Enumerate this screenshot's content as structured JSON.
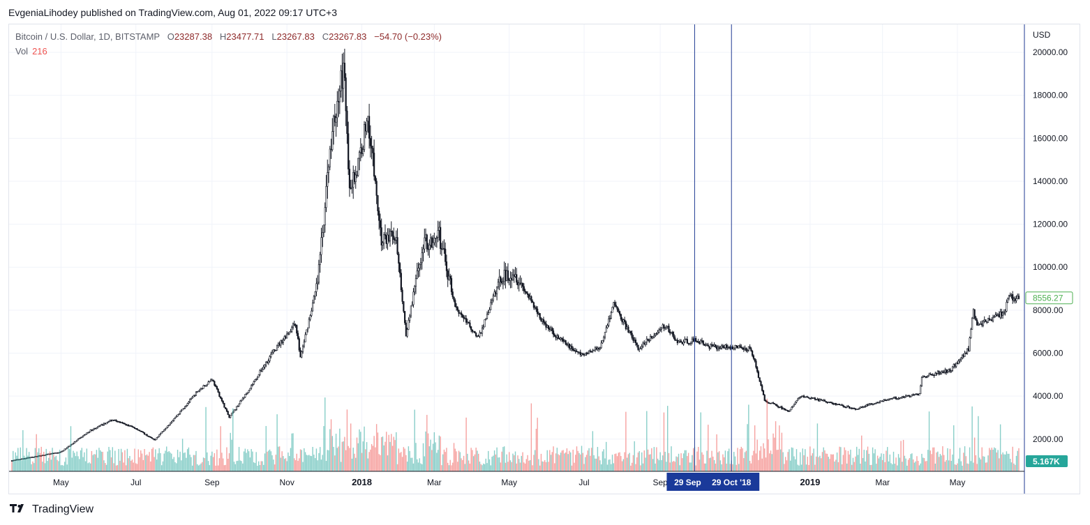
{
  "header": {
    "published_by": "EvgeniaLihodey published on TradingView.com, Aug 01, 2022 09:17 UTC+3"
  },
  "legend": {
    "symbol": "Bitcoin / U.S. Dollar, 1D, BITSTAMP",
    "open_label": "O",
    "open": "23287.38",
    "high_label": "H",
    "high": "23477.71",
    "low_label": "L",
    "low": "23267.83",
    "close_label": "C",
    "close": "23267.83",
    "change": "−54.70 (−0.23%)",
    "vol_label": "Vol",
    "vol_value": "216"
  },
  "footer": {
    "brand": "TradingView",
    "logo_icon": "tradingview-logo-icon"
  },
  "colors": {
    "candle": "#131722",
    "vol_up": "#26a69a",
    "vol_down": "#ef5350",
    "marker_line": "#1f3a93",
    "marker_label_bg": "#1a3a9a",
    "price_tag": "#4caf50",
    "vol_tag": "#26a69a",
    "grid": "#f0f3fa"
  },
  "chart_data": {
    "type": "candlestick",
    "currency_label": "USD",
    "y_ticks": [
      "2000.00",
      "4000.00",
      "6000.00",
      "8000.00",
      "10000.00",
      "12000.00",
      "14000.00",
      "16000.00",
      "18000.00",
      "20000.00"
    ],
    "y_tick_values": [
      2000,
      4000,
      6000,
      8000,
      10000,
      12000,
      14000,
      16000,
      18000,
      20000
    ],
    "ylim": [
      500,
      21300
    ],
    "x_labels": [
      {
        "label": "May",
        "date": "2017-05-01"
      },
      {
        "label": "Jul",
        "date": "2017-07-01"
      },
      {
        "label": "Sep",
        "date": "2017-09-01"
      },
      {
        "label": "Nov",
        "date": "2017-11-01"
      },
      {
        "label": "2018",
        "date": "2018-01-01",
        "bold": true
      },
      {
        "label": "Mar",
        "date": "2018-03-01"
      },
      {
        "label": "May",
        "date": "2018-05-01"
      },
      {
        "label": "Jul",
        "date": "2018-07-01"
      },
      {
        "label": "Sep",
        "date": "2018-09-01"
      },
      {
        "label": "2019",
        "date": "2019-01-01",
        "bold": true
      },
      {
        "label": "Mar",
        "date": "2019-03-01"
      },
      {
        "label": "May",
        "date": "2019-05-01"
      }
    ],
    "x_range": [
      "2017-03-22",
      "2019-06-20"
    ],
    "price_anchors": [
      [
        "2017-03-22",
        1000
      ],
      [
        "2017-04-10",
        1190
      ],
      [
        "2017-05-01",
        1400
      ],
      [
        "2017-05-25",
        2400
      ],
      [
        "2017-06-12",
        2900
      ],
      [
        "2017-07-01",
        2500
      ],
      [
        "2017-07-16",
        1950
      ],
      [
        "2017-08-05",
        3200
      ],
      [
        "2017-08-20",
        4200
      ],
      [
        "2017-09-01",
        4800
      ],
      [
        "2017-09-15",
        3000
      ],
      [
        "2017-10-01",
        4300
      ],
      [
        "2017-10-20",
        6000
      ],
      [
        "2017-11-08",
        7400
      ],
      [
        "2017-11-12",
        5800
      ],
      [
        "2017-11-26",
        9300
      ],
      [
        "2017-12-07",
        16000
      ],
      [
        "2017-12-17",
        19300
      ],
      [
        "2017-12-22",
        13800
      ],
      [
        "2017-12-28",
        14500
      ],
      [
        "2018-01-06",
        17100
      ],
      [
        "2018-01-17",
        11200
      ],
      [
        "2018-01-28",
        11600
      ],
      [
        "2018-02-06",
        6900
      ],
      [
        "2018-02-20",
        11100
      ],
      [
        "2018-03-05",
        11500
      ],
      [
        "2018-03-18",
        8200
      ],
      [
        "2018-04-06",
        6700
      ],
      [
        "2018-04-24",
        9500
      ],
      [
        "2018-05-05",
        9800
      ],
      [
        "2018-05-29",
        7400
      ],
      [
        "2018-06-12",
        6600
      ],
      [
        "2018-06-29",
        5900
      ],
      [
        "2018-07-14",
        6300
      ],
      [
        "2018-07-25",
        8300
      ],
      [
        "2018-08-14",
        6200
      ],
      [
        "2018-09-05",
        7300
      ],
      [
        "2018-09-15",
        6500
      ],
      [
        "2018-10-01",
        6600
      ],
      [
        "2018-10-11",
        6300
      ],
      [
        "2018-10-29",
        6300
      ],
      [
        "2018-11-14",
        6200
      ],
      [
        "2018-11-25",
        3800
      ],
      [
        "2018-12-15",
        3300
      ],
      [
        "2018-12-24",
        4000
      ],
      [
        "2019-01-10",
        3800
      ],
      [
        "2019-02-07",
        3400
      ],
      [
        "2019-03-01",
        3800
      ],
      [
        "2019-03-31",
        4100
      ],
      [
        "2019-04-02",
        4900
      ],
      [
        "2019-04-25",
        5200
      ],
      [
        "2019-05-10",
        6200
      ],
      [
        "2019-05-14",
        8000
      ],
      [
        "2019-05-17",
        7300
      ],
      [
        "2019-06-08",
        7900
      ],
      [
        "2019-06-12",
        8600
      ],
      [
        "2019-06-20",
        8556
      ]
    ],
    "highlight_band": {
      "start": "2018-09-29",
      "end": "2018-10-29"
    },
    "marker_labels": [
      "29 Sep",
      "29 Oct '18"
    ],
    "last_price_tag": "8556.27",
    "last_price": 8556.27,
    "volume_tag": "5.167K"
  }
}
